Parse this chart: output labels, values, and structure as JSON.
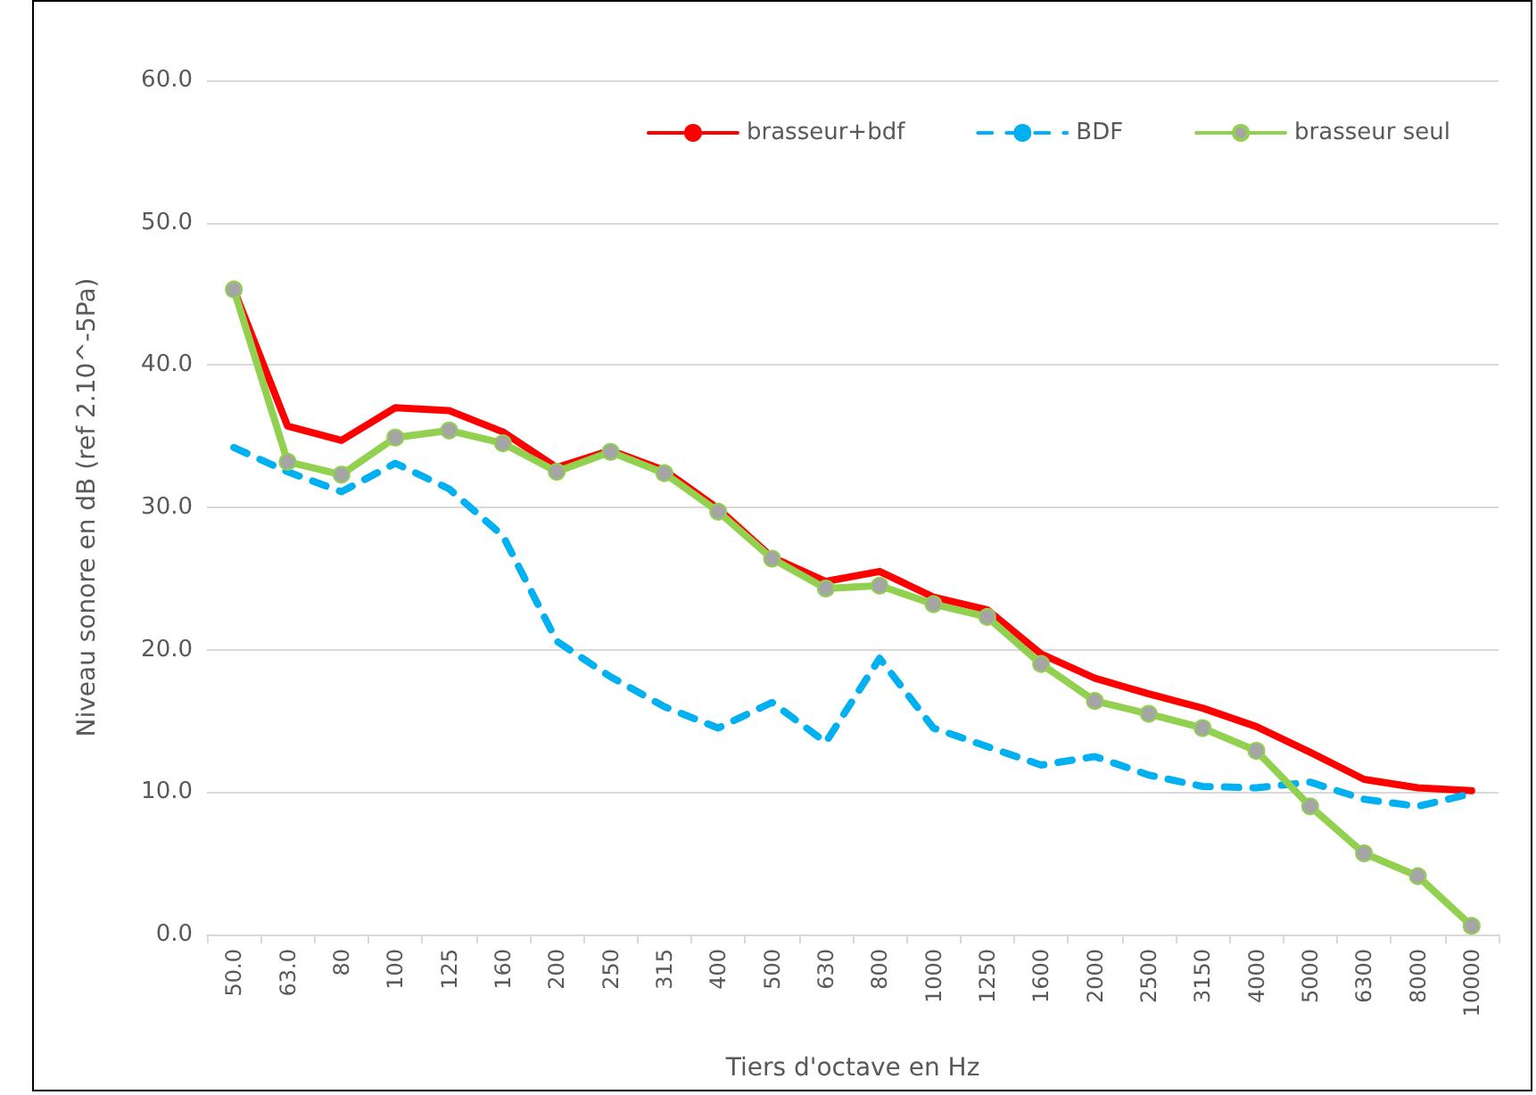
{
  "chart_data": {
    "type": "line",
    "xlabel": "Tiers d'octave en Hz",
    "ylabel": "Niveau sonore en dB (ref 2.10^-5Pa)",
    "categories": [
      "50.0",
      "63.0",
      "80",
      "100",
      "125",
      "160",
      "200",
      "250",
      "315",
      "400",
      "500",
      "630",
      "800",
      "1000",
      "1250",
      "1600",
      "2000",
      "2500",
      "3150",
      "4000",
      "5000",
      "6300",
      "8000",
      "10000"
    ],
    "series": [
      {
        "name": "brasseur+bdf",
        "color": "#ff0000",
        "line_style": "solid",
        "marker": "none",
        "values": [
          45.3,
          35.7,
          34.7,
          37.0,
          36.8,
          35.3,
          32.8,
          34.0,
          32.6,
          29.9,
          26.5,
          24.8,
          25.5,
          23.7,
          22.8,
          19.7,
          18.0,
          16.9,
          15.9,
          14.6,
          12.8,
          10.9,
          10.3,
          10.1
        ]
      },
      {
        "name": "BDF",
        "color": "#00b0f0",
        "line_style": "dashed",
        "marker": "none",
        "values": [
          34.2,
          32.5,
          31.1,
          33.1,
          31.3,
          28.0,
          20.6,
          18.1,
          16.0,
          14.5,
          16.3,
          13.5,
          19.4,
          14.5,
          13.2,
          11.9,
          12.5,
          11.2,
          10.4,
          10.3,
          10.7,
          9.5,
          9.0,
          9.9
        ]
      },
      {
        "name": "brasseur seul",
        "color": "#92d050",
        "line_style": "solid",
        "marker": "circle",
        "values": [
          45.3,
          33.2,
          32.3,
          34.9,
          35.4,
          34.5,
          32.5,
          33.9,
          32.4,
          29.7,
          26.4,
          24.3,
          24.5,
          23.2,
          22.3,
          19.0,
          16.4,
          15.5,
          14.5,
          12.9,
          9.0,
          5.7,
          4.1,
          0.6
        ]
      }
    ],
    "ylim": [
      0,
      60
    ],
    "yticks": [
      {
        "value": 0,
        "label": "0.0"
      },
      {
        "value": 10,
        "label": "10.0"
      },
      {
        "value": 20,
        "label": "20.0"
      },
      {
        "value": 30,
        "label": "30.0"
      },
      {
        "value": 40,
        "label": "40.0"
      },
      {
        "value": 50,
        "label": "50.0"
      },
      {
        "value": 60,
        "label": "60.0"
      }
    ],
    "grid": "y",
    "legend": "top right"
  }
}
